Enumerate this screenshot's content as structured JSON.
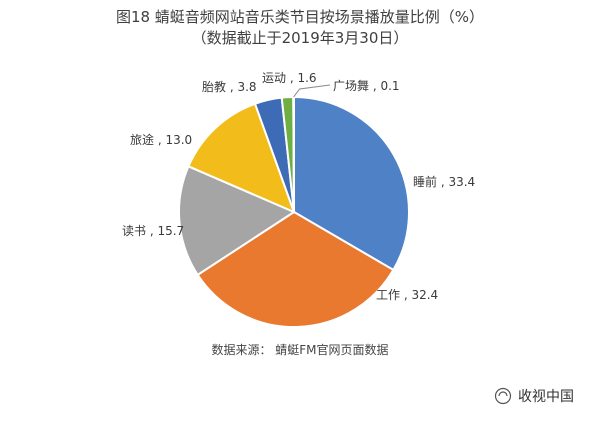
{
  "title": "图18  蜻蜓音频网站音乐类节目按场景播放量比例（%）",
  "subtitle": "（数据截止于2019年3月30日）",
  "source": "数据来源：  蜻蜓FM官网页面数据",
  "brand": "收视中国",
  "chart_data": {
    "type": "pie",
    "unit": "%",
    "slices": [
      {
        "label": "睡前",
        "value": 33.4,
        "color": "#4f81c7"
      },
      {
        "label": "工作",
        "value": 32.4,
        "color": "#e8792f"
      },
      {
        "label": "读书",
        "value": 15.7,
        "color": "#a5a5a5"
      },
      {
        "label": "旅途",
        "value": 13.0,
        "color": "#f2bd1a"
      },
      {
        "label": "胎教",
        "value": 3.8,
        "color": "#3e6bb5"
      },
      {
        "label": "运动",
        "value": 1.6,
        "color": "#6fae43"
      },
      {
        "label": "广场舞",
        "value": 0.1,
        "color": "#2f4f86"
      }
    ]
  }
}
